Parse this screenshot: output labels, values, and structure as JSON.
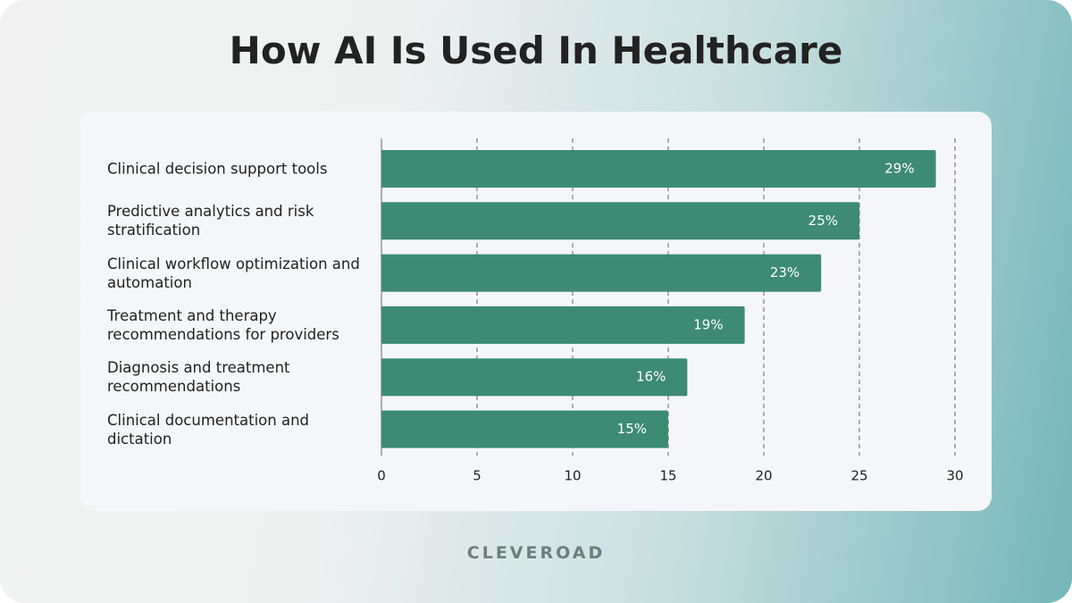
{
  "chart_data": {
    "type": "bar",
    "orientation": "horizontal",
    "title": "How AI Is Used In Healthcare",
    "categories": [
      "Clinical decision support tools",
      "Predictive analytics and risk stratification",
      "Clinical workflow optimization and automation",
      "Treatment and therapy recommendations for providers",
      "Diagnosis and treatment recommendations",
      "Clinical documentation and dictation"
    ],
    "values": [
      29,
      25,
      23,
      19,
      16,
      15
    ],
    "value_labels": [
      "29%",
      "25%",
      "23%",
      "19%",
      "16%",
      "15%"
    ],
    "color": "#3d8b73",
    "xlim": [
      0,
      30
    ],
    "xticks": [
      0,
      5,
      10,
      15,
      20,
      25,
      30
    ],
    "grid": true,
    "brand": "CLEVEROAD"
  }
}
